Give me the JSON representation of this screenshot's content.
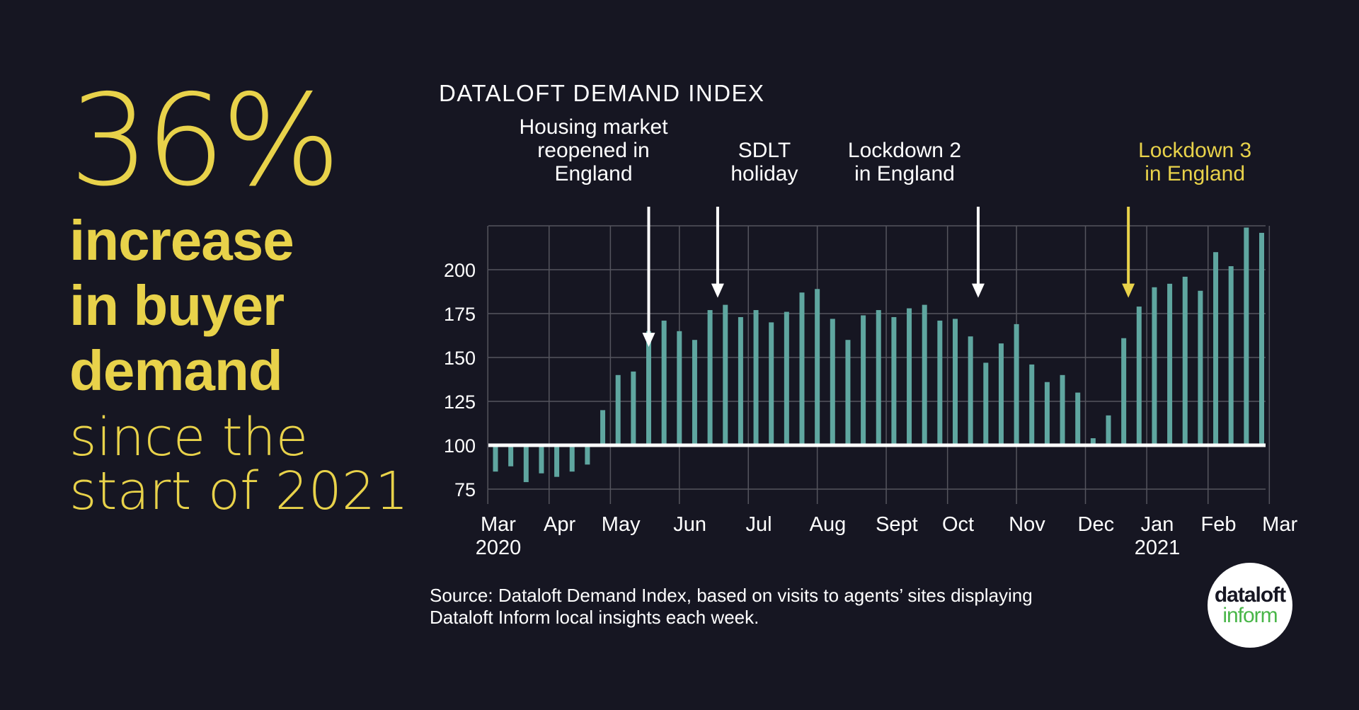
{
  "headline": {
    "stat": "36%",
    "bold_lines": [
      "increase",
      "in buyer",
      "demand"
    ],
    "light_lines": [
      "since the",
      "start of 2021"
    ]
  },
  "colors": {
    "background": "#161622",
    "accent_yellow": "#e8d24a",
    "bar": "#5fa6a0",
    "text": "#ffffff",
    "grid": "#55555e",
    "logo_green": "#49b649"
  },
  "chart_data": {
    "type": "bar",
    "title": "DATALOFT DEMAND INDEX",
    "baseline": 100,
    "ylim": [
      70,
      225
    ],
    "yticks": [
      75,
      100,
      125,
      150,
      175,
      200
    ],
    "grid": true,
    "values": [
      85,
      88,
      79,
      84,
      82,
      85,
      89,
      120,
      140,
      142,
      165,
      171,
      165,
      160,
      177,
      180,
      173,
      177,
      170,
      176,
      187,
      189,
      172,
      160,
      174,
      177,
      173,
      178,
      180,
      171,
      172,
      162,
      147,
      158,
      169,
      146,
      136,
      140,
      130,
      104,
      117,
      161,
      179,
      190,
      192,
      196,
      188,
      210,
      202,
      224,
      221
    ],
    "month_labels": [
      {
        "label": "Mar",
        "sub": "2020",
        "week": 0
      },
      {
        "label": "Apr",
        "week": 4
      },
      {
        "label": "May",
        "week": 8
      },
      {
        "label": "Jun",
        "week": 12.5
      },
      {
        "label": "Jul",
        "week": 17
      },
      {
        "label": "Aug",
        "week": 21.5
      },
      {
        "label": "Sept",
        "week": 26
      },
      {
        "label": "Oct",
        "week": 30
      },
      {
        "label": "Nov",
        "week": 34.5
      },
      {
        "label": "Dec",
        "week": 39
      },
      {
        "label": "Jan",
        "sub": "2021",
        "week": 43
      },
      {
        "label": "Feb",
        "week": 47
      },
      {
        "label": "Mar",
        "week": 51
      }
    ],
    "annotations": [
      {
        "lines": [
          "Housing market",
          "reopened in",
          "England"
        ],
        "week": 10,
        "value": 156,
        "color": "#ffffff"
      },
      {
        "lines": [
          "SDLT",
          "holiday"
        ],
        "week": 14.5,
        "value": 184,
        "color": "#ffffff"
      },
      {
        "lines": [
          "Lockdown 2",
          "in England"
        ],
        "week": 31.5,
        "value": 184,
        "color": "#ffffff"
      },
      {
        "lines": [
          "Lockdown 3",
          "in England"
        ],
        "week": 41.3,
        "value": 184,
        "color": "#e8d24a"
      }
    ]
  },
  "source": {
    "lines": [
      "Source: Dataloft Demand Index, based on visits to agents’ sites displaying",
      "Dataloft Inform local insights each week."
    ]
  },
  "logo": {
    "line1": "dataloft",
    "line2": "inform"
  }
}
